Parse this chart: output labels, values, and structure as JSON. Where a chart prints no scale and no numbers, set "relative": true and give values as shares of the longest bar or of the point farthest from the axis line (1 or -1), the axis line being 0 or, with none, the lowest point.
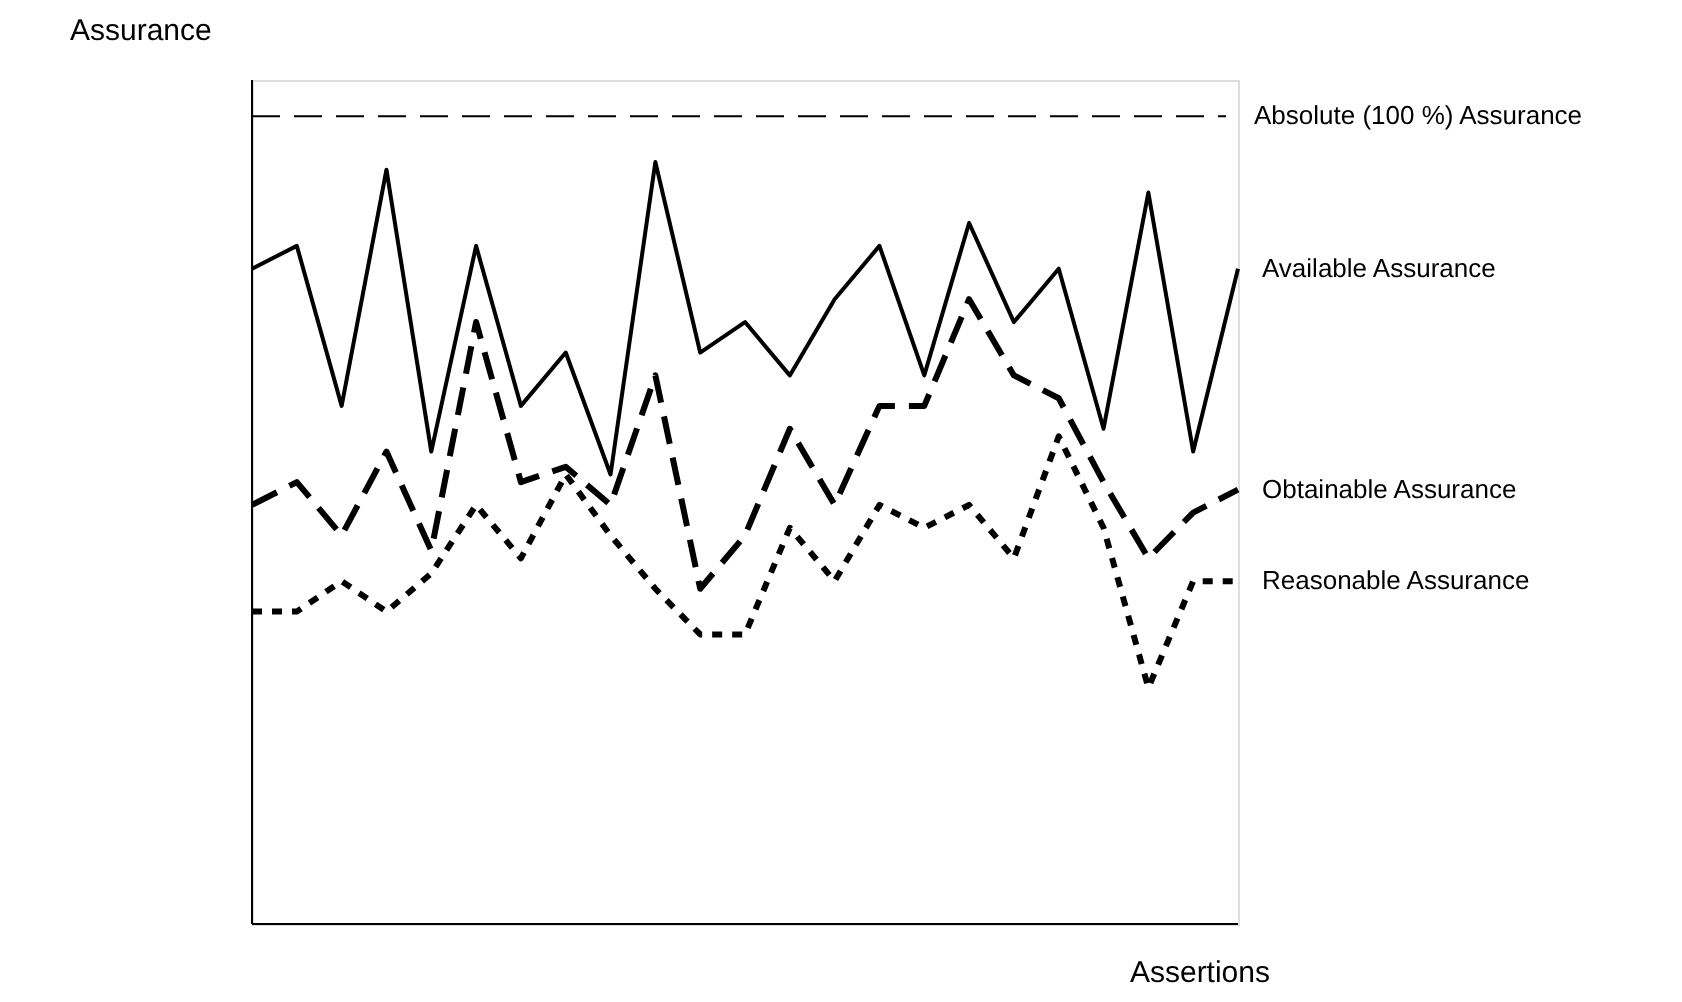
{
  "chart_data": {
    "type": "line",
    "relative": true,
    "xlabel": "Assertions",
    "ylabel": "Assurance",
    "categories": [
      null,
      null,
      null,
      null,
      null,
      null,
      null,
      null,
      null,
      null,
      null,
      null,
      null,
      null,
      null,
      null,
      null,
      null,
      null,
      null,
      null,
      null,
      null
    ],
    "series": [
      {
        "name": "Available Assurance",
        "color": "#000000",
        "line_style": "solid",
        "values": [
          0.86,
          0.89,
          0.68,
          0.99,
          0.62,
          0.89,
          0.68,
          0.75,
          0.59,
          1,
          0.75,
          0.79,
          0.72,
          0.82,
          0.89,
          0.72,
          0.92,
          0.79,
          0.86,
          0.65,
          0.96,
          0.62,
          0.86
        ]
      },
      {
        "name": "Obtainable Assurance",
        "color": "#000000",
        "line_style": "dashed",
        "values": [
          0.55,
          0.58,
          0.51,
          0.62,
          0.49,
          0.79,
          0.58,
          0.6,
          0.55,
          0.72,
          0.44,
          0.51,
          0.65,
          0.55,
          0.68,
          0.68,
          0.82,
          0.72,
          0.69,
          0.58,
          0.48,
          0.54,
          0.57
        ]
      },
      {
        "name": "Reasonable Assurance",
        "color": "#000000",
        "line_style": "dotted",
        "values": [
          0.41,
          0.41,
          0.45,
          0.41,
          0.46,
          0.55,
          0.48,
          0.59,
          0.51,
          0.44,
          0.38,
          0.38,
          0.52,
          0.45,
          0.55,
          0.52,
          0.55,
          0.48,
          0.64,
          0.52,
          0.31,
          0.45,
          0.45
        ]
      }
    ],
    "ref_lines": [
      {
        "axis": "y",
        "value": 1.06,
        "label": "Absolute (100 %) Assurance",
        "color": "#000000",
        "line_style": "dashed"
      }
    ]
  }
}
